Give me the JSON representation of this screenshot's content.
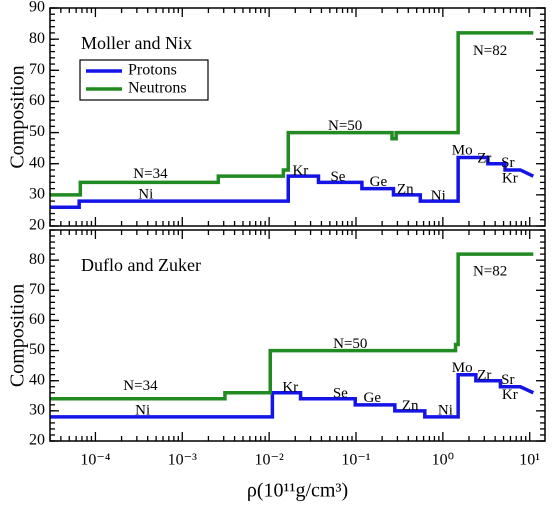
{
  "chart_data": [
    {
      "type": "line",
      "title": "Moller and Nix",
      "ylabel": "Composition",
      "xscale": "log",
      "xlim": [
        3e-05,
        15
      ],
      "ylim": [
        20,
        90
      ],
      "yticks": [
        20,
        30,
        40,
        50,
        60,
        70,
        80,
        90
      ],
      "legend": "upper left",
      "series": [
        {
          "name": "Protons",
          "color": "#1414e6",
          "x": [
            3e-05,
            6.5e-05,
            6.5e-05,
            0.0166,
            0.0166,
            0.037,
            0.037,
            0.117,
            0.117,
            0.27,
            0.27,
            0.55,
            0.55,
            1.5,
            1.5,
            3.3,
            3.3,
            5.2,
            5.2,
            7.8,
            11
          ],
          "values": [
            26,
            26,
            28,
            28,
            36,
            36,
            34,
            34,
            32,
            32,
            30,
            30,
            28,
            28,
            42,
            42,
            40,
            40,
            38,
            38,
            36
          ]
        },
        {
          "name": "Neutrons",
          "color": "#218a21",
          "x": [
            3e-05,
            6.7e-05,
            6.7e-05,
            0.0026,
            0.0026,
            0.0146,
            0.0146,
            0.0166,
            0.0166,
            0.26,
            0.26,
            0.29,
            0.29,
            1.5,
            1.5,
            11
          ],
          "values": [
            30,
            30,
            34,
            34,
            36,
            36,
            38,
            38,
            50,
            50,
            48,
            48,
            50,
            50,
            82,
            82
          ]
        }
      ],
      "annotations": [
        {
          "text": "N=34",
          "x": 0.00043,
          "y": 36.5
        },
        {
          "text": "Ni",
          "x": 0.00038,
          "y": 30
        },
        {
          "text": "Kr",
          "x": 0.0229,
          "y": 37.5
        },
        {
          "text": "Se",
          "x": 0.062,
          "y": 35.5
        },
        {
          "text": "Ge",
          "x": 0.181,
          "y": 34
        },
        {
          "text": "Zn",
          "x": 0.37,
          "y": 31.5
        },
        {
          "text": "Ni",
          "x": 0.885,
          "y": 29.5
        },
        {
          "text": "N=50",
          "x": 0.075,
          "y": 52
        },
        {
          "text": "Mo",
          "x": 1.67,
          "y": 44
        },
        {
          "text": "Zr",
          "x": 3.0,
          "y": 41.5
        },
        {
          "text": "Sr",
          "x": 5.6,
          "y": 40
        },
        {
          "text": "Kr",
          "x": 5.9,
          "y": 35
        },
        {
          "text": "N=82",
          "x": 3.5,
          "y": 76
        }
      ]
    },
    {
      "type": "line",
      "title": "Duflo and Zuker",
      "ylabel": "Composition",
      "xlabel": "ρ(10¹¹g/cm³)",
      "xscale": "log",
      "xlim": [
        3e-05,
        15
      ],
      "ylim": [
        20,
        90
      ],
      "yticks": [
        20,
        30,
        40,
        50,
        60,
        70,
        80
      ],
      "xticks": [
        {
          "value": 0.0001,
          "label": "10⁻⁴"
        },
        {
          "value": 0.001,
          "label": "10⁻³"
        },
        {
          "value": 0.01,
          "label": "10⁻²"
        },
        {
          "value": 0.1,
          "label": "10⁻¹"
        },
        {
          "value": 1,
          "label": "10⁰"
        },
        {
          "value": 10,
          "label": "10¹"
        }
      ],
      "series": [
        {
          "color": "#1414e6",
          "x": [
            3e-05,
            0.0109,
            0.0109,
            0.023,
            0.023,
            0.098,
            0.098,
            0.28,
            0.28,
            0.62,
            0.62,
            1.5,
            1.5,
            2.4,
            2.4,
            4.6,
            4.6,
            7.8,
            11
          ],
          "values": [
            28,
            28,
            36,
            36,
            34,
            34,
            32,
            32,
            30,
            30,
            28,
            28,
            42,
            42,
            40,
            40,
            38,
            38,
            36
          ]
        },
        {
          "color": "#218a21",
          "x": [
            3e-05,
            0.0031,
            0.0031,
            0.0103,
            0.0103,
            1.4,
            1.4,
            1.5,
            1.5,
            11
          ],
          "values": [
            34,
            34,
            36,
            36,
            50,
            50,
            52,
            52,
            82,
            82
          ]
        }
      ],
      "annotations": [
        {
          "text": "N=34",
          "x": 0.00033,
          "y": 38
        },
        {
          "text": "Ni",
          "x": 0.00035,
          "y": 30
        },
        {
          "text": "Kr",
          "x": 0.0175,
          "y": 37.5
        },
        {
          "text": "Se",
          "x": 0.066,
          "y": 35.5
        },
        {
          "text": "Ge",
          "x": 0.154,
          "y": 34
        },
        {
          "text": "Zn",
          "x": 0.42,
          "y": 31.5
        },
        {
          "text": "Ni",
          "x": 1.07,
          "y": 30
        },
        {
          "text": "N=50",
          "x": 0.086,
          "y": 52
        },
        {
          "text": "Mo",
          "x": 1.67,
          "y": 44
        },
        {
          "text": "Zr",
          "x": 3.0,
          "y": 41.5
        },
        {
          "text": "Sr",
          "x": 5.6,
          "y": 40
        },
        {
          "text": "Kr",
          "x": 5.9,
          "y": 35
        },
        {
          "text": "N=82",
          "x": 3.5,
          "y": 76
        }
      ]
    }
  ]
}
